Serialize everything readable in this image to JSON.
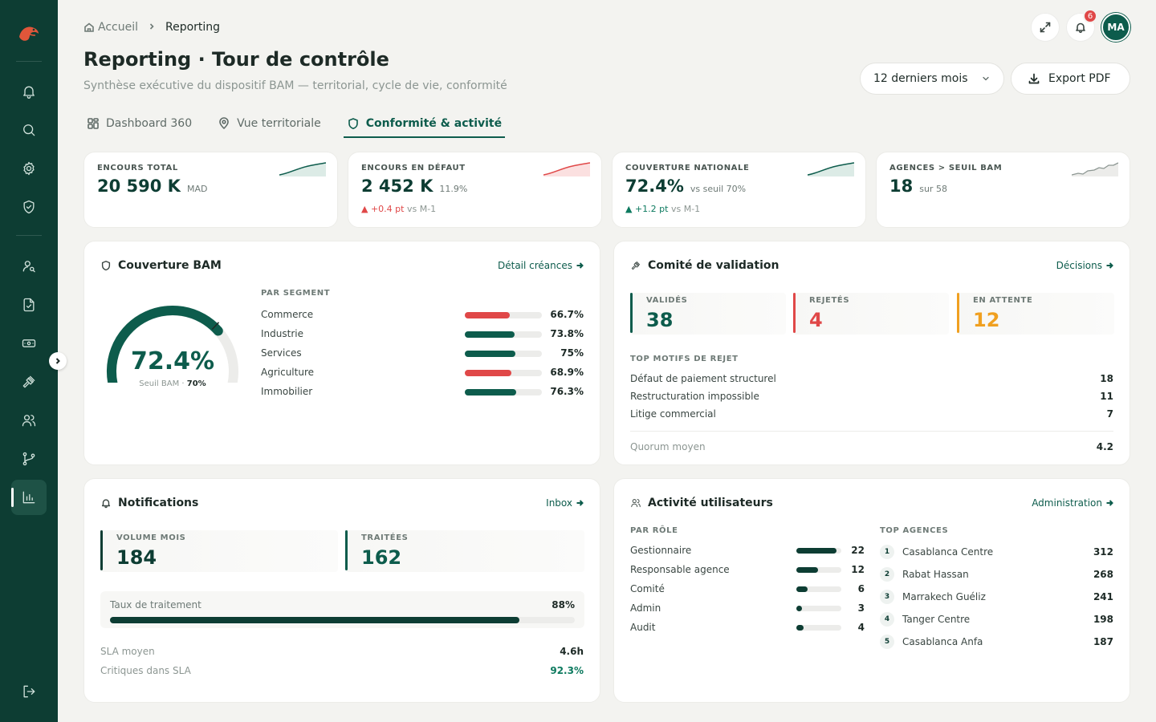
{
  "sidebar": {
    "items": [
      {
        "name": "sidebar-item-notifications",
        "icon": "bell-icon"
      },
      {
        "name": "sidebar-item-search",
        "icon": "search-icon"
      },
      {
        "name": "sidebar-item-settings",
        "icon": "gear-icon"
      },
      {
        "name": "sidebar-item-security",
        "icon": "shield-check-icon"
      },
      {
        "name": "sidebar-item-clients",
        "icon": "user-search-icon"
      },
      {
        "name": "sidebar-item-dossiers",
        "icon": "file-check-icon"
      },
      {
        "name": "sidebar-item-creances",
        "icon": "banknote-icon"
      },
      {
        "name": "sidebar-item-comite",
        "icon": "gavel-icon"
      },
      {
        "name": "sidebar-item-users",
        "icon": "users-icon"
      },
      {
        "name": "sidebar-item-workflow",
        "icon": "git-branch-icon"
      },
      {
        "name": "sidebar-item-reporting",
        "icon": "bar-chart-icon",
        "active": true
      }
    ],
    "logout_icon": "logout-icon"
  },
  "header": {
    "breadcrumb_home": "Accueil",
    "breadcrumb_current": "Reporting",
    "title": "Reporting · Tour de contrôle",
    "subtitle": "Synthèse exécutive du dispositif BAM — territorial, cycle de vie, conformité",
    "notification_count": "6",
    "avatar_initials": "MA",
    "period_select": "12 derniers mois",
    "export_label": "Export PDF"
  },
  "tabs": [
    {
      "label": "Dashboard 360",
      "icon": "grid-icon"
    },
    {
      "label": "Vue territoriale",
      "icon": "map-pin-icon"
    },
    {
      "label": "Conformité & activité",
      "icon": "shield-icon",
      "active": true
    }
  ],
  "kpis": [
    {
      "label": "ENCOURS TOTAL",
      "value": "20 590 K",
      "unit": "MAD",
      "delta": "",
      "delta_suffix": "",
      "trend": "up",
      "color": "#0d5c4c"
    },
    {
      "label": "ENCOURS EN DÉFAUT",
      "value": "2 452 K",
      "unit": "11.9%",
      "delta": "▲ +0.4 pt",
      "delta_suffix": "vs M-1",
      "trend": "up",
      "color": "#e04848"
    },
    {
      "label": "COUVERTURE NATIONALE",
      "value": "72.4%",
      "unit": "vs seuil 70%",
      "delta": "▲ +1.2 pt",
      "delta_suffix": "vs M-1",
      "trend": "up",
      "color": "#0d5c4c"
    },
    {
      "label": "AGENCES > SEUIL BAM",
      "value": "18",
      "unit": "sur 58",
      "delta": "",
      "delta_suffix": "",
      "trend": "step",
      "color": "#8c9692"
    }
  ],
  "couverture": {
    "title": "Couverture BAM",
    "link": "Détail créances",
    "gauge_value": "72.4%",
    "gauge_fraction": 0.724,
    "threshold_fraction": 0.7,
    "threshold_label": "Seuil BAM ·",
    "threshold_value": "70%",
    "segment_label": "PAR SEGMENT",
    "segments": [
      {
        "name": "Commerce",
        "value": "66.7%",
        "pct": 66.7,
        "color": "#e04848"
      },
      {
        "name": "Industrie",
        "value": "73.8%",
        "pct": 73.8,
        "color": "#0d5c4c"
      },
      {
        "name": "Services",
        "value": "75%",
        "pct": 75,
        "color": "#0d5c4c"
      },
      {
        "name": "Agriculture",
        "value": "68.9%",
        "pct": 68.9,
        "color": "#e04848"
      },
      {
        "name": "Immobilier",
        "value": "76.3%",
        "pct": 76.3,
        "color": "#0d5c4c"
      }
    ]
  },
  "comite": {
    "title": "Comité de validation",
    "link": "Décisions",
    "stats": [
      {
        "label": "VALIDÉS",
        "value": "38",
        "color": "#0d5c4c"
      },
      {
        "label": "REJETÉS",
        "value": "4",
        "color": "#e04848"
      },
      {
        "label": "EN ATTENTE",
        "value": "12",
        "color": "#f0a020"
      }
    ],
    "motifs_label": "TOP MOTIFS DE REJET",
    "motifs": [
      {
        "name": "Défaut de paiement structurel",
        "count": "18"
      },
      {
        "name": "Restructuration impossible",
        "count": "11"
      },
      {
        "name": "Litige commercial",
        "count": "7"
      }
    ],
    "quorum_label": "Quorum moyen",
    "quorum_value": "4.2"
  },
  "notifications": {
    "title": "Notifications",
    "link": "Inbox",
    "stats": [
      {
        "label": "VOLUME MOIS",
        "value": "184"
      },
      {
        "label": "TRAITÉES",
        "value": "162"
      }
    ],
    "rate_label": "Taux de traitement",
    "rate_value": "88%",
    "rate_pct": 88,
    "sla_label": "SLA moyen",
    "sla_value": "4.6h",
    "crit_label": "Critiques dans SLA",
    "crit_value": "92.3%"
  },
  "activite": {
    "title": "Activité utilisateurs",
    "link": "Administration",
    "roles_label": "PAR RÔLE",
    "roles": [
      {
        "name": "Gestionnaire",
        "count": "22",
        "n": 22
      },
      {
        "name": "Responsable agence",
        "count": "12",
        "n": 12
      },
      {
        "name": "Comité",
        "count": "6",
        "n": 6
      },
      {
        "name": "Admin",
        "count": "3",
        "n": 3
      },
      {
        "name": "Audit",
        "count": "4",
        "n": 4
      }
    ],
    "agences_label": "TOP AGENCES",
    "agences": [
      {
        "rank": "1",
        "name": "Casablanca Centre",
        "count": "312"
      },
      {
        "rank": "2",
        "name": "Rabat Hassan",
        "count": "268"
      },
      {
        "rank": "3",
        "name": "Marrakech Guéliz",
        "count": "241"
      },
      {
        "rank": "4",
        "name": "Tanger Centre",
        "count": "198"
      },
      {
        "rank": "5",
        "name": "Casablanca Anfa",
        "count": "187"
      }
    ]
  }
}
